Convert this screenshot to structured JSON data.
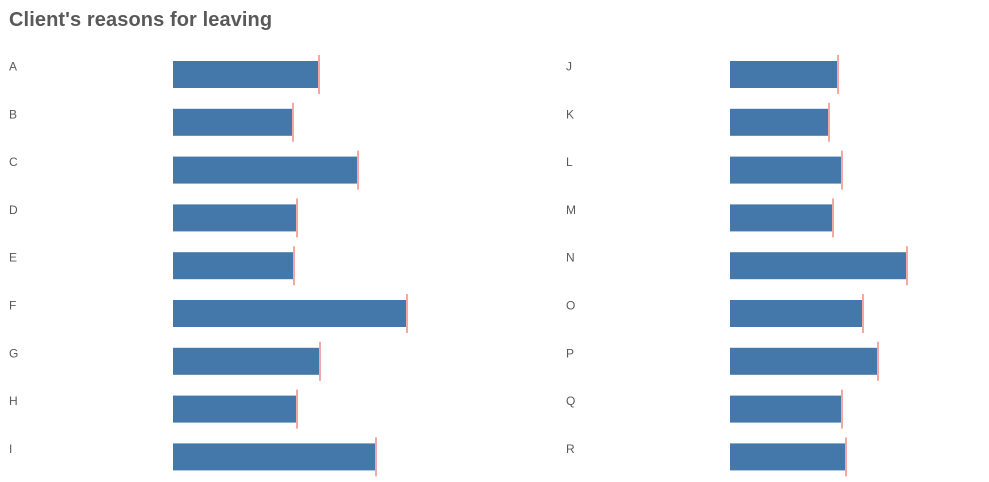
{
  "title": "Client's reasons for leaving",
  "colors": {
    "bar": "#4477aa",
    "marker": "#e8504a",
    "text": "#595959"
  },
  "chart_data": [
    {
      "type": "bar",
      "orientation": "horizontal",
      "categories": [
        "A",
        "B",
        "C",
        "D",
        "E",
        "F",
        "G",
        "H",
        "I"
      ],
      "values": [
        145,
        119,
        184,
        123,
        120,
        233,
        146,
        123,
        202
      ],
      "markers": [
        146,
        120,
        185,
        124,
        121,
        234,
        147,
        124,
        203
      ],
      "xlim": [
        0,
        240
      ],
      "grid": false
    },
    {
      "type": "bar",
      "orientation": "horizontal",
      "categories": [
        "J",
        "K",
        "L",
        "M",
        "N",
        "O",
        "P",
        "Q",
        "R"
      ],
      "values": [
        107,
        98,
        111,
        102,
        176,
        132,
        147,
        111,
        115
      ],
      "markers": [
        108,
        99,
        112,
        103,
        177,
        133,
        148,
        112,
        116
      ],
      "xlim": [
        0,
        240
      ],
      "grid": false
    }
  ]
}
